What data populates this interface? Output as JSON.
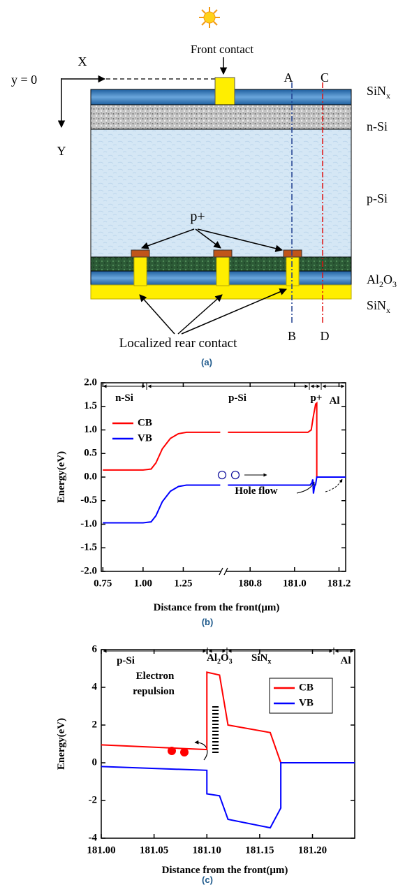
{
  "figure_a": {
    "front_contact": "Front contact",
    "origin": "y = 0",
    "x_axis": "X",
    "y_axis": "Y",
    "line_labels": [
      "A",
      "B",
      "C",
      "D"
    ],
    "layers": [
      [
        "SiN",
        "x"
      ],
      [
        "n-Si"
      ],
      [
        "p-Si"
      ],
      [
        "Al",
        "2",
        "O",
        "3"
      ],
      [
        "SiN",
        "x"
      ]
    ],
    "p_plus": "p+",
    "rear_contact": "Localized rear contact",
    "caption": "(a)"
  },
  "chart_data": [
    {
      "type": "line",
      "x_segments": [
        {
          "xlim": [
            0.74,
            1.5
          ],
          "xticks": [
            0.75,
            {
              "value": 1,
              "label": "1.00"
            },
            1.25
          ]
        },
        {
          "xlim": [
            180.68,
            181.23
          ],
          "xticks": [
            180.8,
            {
              "value": 181,
              "label": "181.0"
            },
            181.2
          ]
        }
      ],
      "ylim": [
        -2,
        2
      ],
      "yticks": [
        {
          "value": -2,
          "label": "-2.0"
        },
        -1.5,
        {
          "value": -1,
          "label": "-1.0"
        },
        -0.5,
        {
          "value": 0,
          "label": "0.0"
        },
        0.5,
        {
          "value": 1,
          "label": "1.0"
        },
        1.5,
        {
          "value": 2,
          "label": "2.0"
        }
      ],
      "xlabel": "Distance from the front(μm)",
      "ylabel": "Energy(eV)",
      "legend": "upper left",
      "series": [
        {
          "name": "CB",
          "color": "#ff0000",
          "x": [
            0.75,
            1.0,
            1.05,
            1.08,
            1.12,
            1.17,
            1.22,
            1.27,
            1.48,
            1.5,
            180.7,
            181.06,
            181.075,
            181.085,
            181.095,
            181.1,
            181.1,
            181.23
          ],
          "values": [
            0.15,
            0.15,
            0.17,
            0.3,
            0.6,
            0.82,
            0.92,
            0.95,
            0.95,
            null,
            0.95,
            0.95,
            1.0,
            1.3,
            1.55,
            1.57,
            0.0,
            0.0
          ]
        },
        {
          "name": "VB",
          "color": "#0000ff",
          "x": [
            0.75,
            1.0,
            1.05,
            1.08,
            1.12,
            1.17,
            1.22,
            1.27,
            1.48,
            1.5,
            180.7,
            181.07,
            181.078,
            181.082,
            181.085,
            181.09,
            181.095,
            181.1,
            181.23
          ],
          "values": [
            -0.97,
            -0.97,
            -0.95,
            -0.82,
            -0.52,
            -0.3,
            -0.2,
            -0.17,
            -0.17,
            null,
            -0.17,
            -0.17,
            -0.12,
            -0.05,
            -0.35,
            -0.2,
            -0.15,
            0.0,
            0.0
          ]
        }
      ],
      "annotations": [
        "n-Si",
        "p-Si",
        "p+",
        "Al",
        "Hole flow"
      ],
      "caption": "(b)"
    },
    {
      "type": "line",
      "xlim": [
        181.0,
        181.24
      ],
      "xticks": [
        {
          "value": 181,
          "label": "181.00"
        },
        181.05,
        {
          "value": 181.1,
          "label": "181.10"
        },
        181.15,
        {
          "value": 181.2,
          "label": "181.20"
        }
      ],
      "ylim": [
        -4,
        6
      ],
      "yticks": [
        -4,
        -2,
        0,
        2,
        4,
        6
      ],
      "xlabel": "Distance from the front(μm)",
      "ylabel": "Energy(eV)",
      "legend": "upper right",
      "series": [
        {
          "name": "CB",
          "color": "#ff0000",
          "x": [
            181.0,
            181.1,
            181.1,
            181.112,
            181.12,
            181.16,
            181.17,
            181.24
          ],
          "values": [
            0.95,
            0.7,
            4.8,
            4.65,
            2.0,
            1.6,
            0.0,
            0.0
          ]
        },
        {
          "name": "VB",
          "color": "#0000ff",
          "x": [
            181.0,
            181.1,
            181.1,
            181.112,
            181.12,
            181.16,
            181.17,
            181.17,
            181.24
          ],
          "values": [
            -0.2,
            -0.4,
            -1.65,
            -1.75,
            -3.0,
            -3.45,
            -2.4,
            0.0,
            0.0
          ]
        }
      ],
      "annotations": [
        "p-Si",
        [
          "Al",
          "2",
          "O",
          "3"
        ],
        [
          "SiN",
          "x"
        ],
        "Al",
        "Electron",
        "repulsion"
      ],
      "caption": "(c)"
    }
  ]
}
